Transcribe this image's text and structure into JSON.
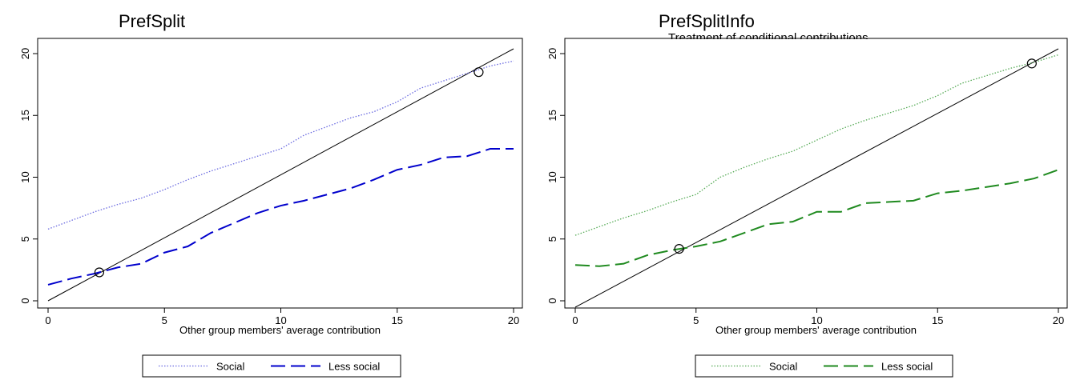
{
  "chart_data": [
    {
      "type": "line",
      "title": "PrefSplit",
      "subtitle": "",
      "xlabel": "Other group members' average contribution",
      "ylabel": "",
      "xlim": [
        0,
        20
      ],
      "ylim": [
        0,
        20
      ],
      "xticks": [
        0,
        5,
        10,
        15,
        20
      ],
      "yticks": [
        0,
        5,
        10,
        15,
        20
      ],
      "grid": false,
      "legend_position": "bottom",
      "reference_line": {
        "x": [
          0,
          20
        ],
        "y": [
          0,
          20
        ],
        "color": "#000000"
      },
      "intersections": [
        {
          "x": 2.2,
          "y": 2.3
        },
        {
          "x": 18.5,
          "y": 18.5
        }
      ],
      "series": [
        {
          "name": "Social",
          "color": "#6a6ae0",
          "style": "dotted",
          "x": [
            0,
            1,
            2,
            3,
            4,
            5,
            6,
            7,
            8,
            9,
            10,
            11,
            12,
            13,
            14,
            15,
            16,
            17,
            18,
            19,
            20
          ],
          "values": [
            5.8,
            6.5,
            7.2,
            7.8,
            8.3,
            9.0,
            9.8,
            10.5,
            11.1,
            11.7,
            12.3,
            13.4,
            14.1,
            14.8,
            15.3,
            16.1,
            17.2,
            17.8,
            18.4,
            19.0,
            19.4
          ]
        },
        {
          "name": "Less social",
          "color": "#0000cc",
          "style": "dashed",
          "x": [
            0,
            1,
            2,
            3,
            4,
            5,
            6,
            7,
            8,
            9,
            10,
            11,
            12,
            13,
            14,
            15,
            16,
            17,
            18,
            19,
            20
          ],
          "values": [
            1.3,
            1.8,
            2.2,
            2.7,
            3.0,
            3.9,
            4.4,
            5.5,
            6.3,
            7.1,
            7.7,
            8.1,
            8.6,
            9.1,
            9.8,
            10.6,
            11.0,
            11.6,
            11.7,
            12.3,
            12.3
          ]
        }
      ]
    },
    {
      "type": "line",
      "title": "PrefSplitInfo",
      "subtitle": "Treatment of conditional contributions",
      "xlabel": "Other group members' average contribution",
      "ylabel": "",
      "xlim": [
        0,
        20
      ],
      "ylim": [
        0,
        20
      ],
      "xticks": [
        0,
        5,
        10,
        15,
        20
      ],
      "yticks": [
        0,
        5,
        10,
        15,
        20
      ],
      "grid": false,
      "legend_position": "bottom",
      "reference_line": {
        "x": [
          0,
          20
        ],
        "y": [
          0,
          20
        ],
        "color": "#000000"
      },
      "intersections": [
        {
          "x": 4.3,
          "y": 4.2
        },
        {
          "x": 18.9,
          "y": 19.2
        }
      ],
      "series": [
        {
          "name": "Social",
          "color": "#55aa55",
          "style": "dotted",
          "x": [
            0,
            1,
            2,
            3,
            4,
            5,
            6,
            7,
            8,
            9,
            10,
            11,
            12,
            13,
            14,
            15,
            16,
            17,
            18,
            19,
            20
          ],
          "values": [
            5.3,
            6.0,
            6.7,
            7.3,
            8.0,
            8.6,
            10.0,
            10.8,
            11.5,
            12.1,
            13.0,
            13.9,
            14.6,
            15.2,
            15.8,
            16.6,
            17.6,
            18.2,
            18.8,
            19.3,
            19.9
          ]
        },
        {
          "name": "Less social",
          "color": "#1f8a1f",
          "style": "dashed",
          "x": [
            0,
            1,
            2,
            3,
            4,
            5,
            6,
            7,
            8,
            9,
            10,
            11,
            12,
            13,
            14,
            15,
            16,
            17,
            18,
            19,
            20
          ],
          "values": [
            2.9,
            2.8,
            3.0,
            3.7,
            4.1,
            4.4,
            4.8,
            5.5,
            6.2,
            6.4,
            7.2,
            7.2,
            7.9,
            8.0,
            8.1,
            8.7,
            8.9,
            9.2,
            9.5,
            9.9,
            10.6
          ]
        }
      ]
    }
  ]
}
